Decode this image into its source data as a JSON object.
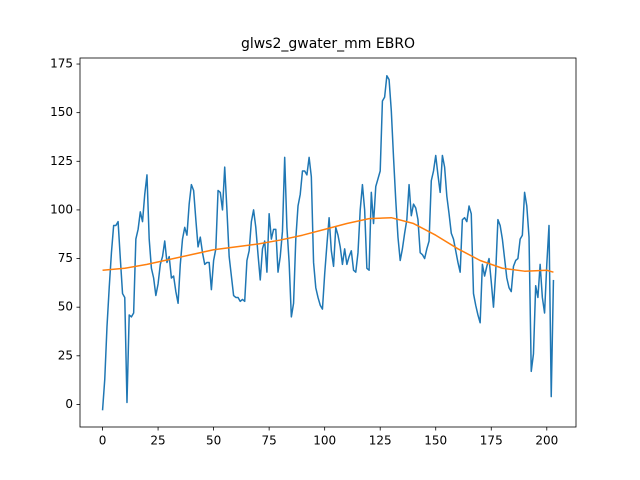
{
  "chart_data": {
    "type": "line",
    "title": "glws2_gwater_mm EBRO",
    "xlim": [
      -10.15,
      213.15
    ],
    "ylim": [
      -11.6,
      178.1
    ],
    "xticks": [
      0,
      25,
      50,
      75,
      100,
      125,
      150,
      175,
      200
    ],
    "yticks": [
      0,
      25,
      50,
      75,
      100,
      125,
      150,
      175
    ],
    "series": [
      {
        "color": "#1f77b4",
        "x": [
          0,
          1,
          2,
          3,
          4,
          5,
          6,
          7,
          8,
          9,
          10,
          11,
          12,
          13,
          14,
          15,
          16,
          17,
          18,
          19,
          20,
          21,
          22,
          23,
          24,
          25,
          26,
          27,
          28,
          29,
          30,
          31,
          32,
          33,
          34,
          35,
          36,
          37,
          38,
          39,
          40,
          41,
          42,
          43,
          44,
          45,
          46,
          47,
          48,
          49,
          50,
          51,
          52,
          53,
          54,
          55,
          56,
          57,
          58,
          59,
          60,
          61,
          62,
          63,
          64,
          65,
          66,
          67,
          68,
          69,
          70,
          71,
          72,
          73,
          74,
          75,
          76,
          77,
          78,
          79,
          80,
          81,
          82,
          83,
          84,
          85,
          86,
          87,
          88,
          89,
          90,
          91,
          92,
          93,
          94,
          95,
          96,
          97,
          98,
          99,
          100,
          101,
          102,
          103,
          104,
          105,
          106,
          107,
          108,
          109,
          110,
          111,
          112,
          113,
          114,
          115,
          116,
          117,
          118,
          119,
          120,
          121,
          122,
          123,
          124,
          125,
          126,
          127,
          128,
          129,
          130,
          131,
          132,
          133,
          134,
          135,
          136,
          137,
          138,
          139,
          140,
          141,
          142,
          143,
          144,
          145,
          146,
          147,
          148,
          149,
          150,
          151,
          152,
          153,
          154,
          155,
          156,
          157,
          158,
          159,
          160,
          161,
          162,
          163,
          164,
          165,
          166,
          167,
          168,
          169,
          170,
          171,
          172,
          173,
          174,
          175,
          176,
          177,
          178,
          179,
          180,
          181,
          182,
          183,
          184,
          185,
          186,
          187,
          188,
          189,
          190,
          191,
          192,
          193,
          194,
          195,
          196,
          197,
          198,
          199,
          200,
          201,
          202,
          203
        ],
        "values": [
          -3,
          13,
          40,
          60,
          78,
          92,
          92,
          94,
          75,
          57,
          55,
          1,
          46,
          45,
          47,
          85,
          90,
          99,
          94,
          108,
          118,
          85,
          70,
          65,
          56,
          62,
          72,
          76,
          84,
          73,
          76,
          65,
          66,
          58,
          52,
          72,
          85,
          91,
          87,
          103,
          113,
          110,
          95,
          81,
          86,
          78,
          72,
          73,
          73,
          59,
          74,
          80,
          110,
          109,
          100,
          122,
          100,
          76,
          66,
          56,
          55,
          55,
          53,
          54,
          53,
          74,
          79,
          94,
          100,
          91,
          77,
          64,
          80,
          84,
          68,
          98,
          85,
          90,
          90,
          68,
          76,
          89,
          127,
          91,
          73,
          45,
          52,
          85,
          102,
          108,
          120,
          120,
          118,
          127,
          117,
          73,
          60,
          55,
          51,
          49,
          67,
          82,
          96,
          79,
          71,
          91,
          87,
          81,
          72,
          80,
          72,
          76,
          79,
          69,
          68,
          78,
          100,
          113,
          100,
          70,
          69,
          109,
          93,
          112,
          116,
          120,
          156,
          158,
          169,
          167,
          151,
          127,
          105,
          86,
          74,
          80,
          88,
          95,
          113,
          97,
          103,
          101,
          95,
          78,
          77,
          75,
          80,
          84,
          115,
          120,
          128,
          118,
          109,
          128,
          122,
          107,
          98,
          88,
          85,
          79,
          73,
          68,
          95,
          96,
          94,
          102,
          98,
          57,
          51,
          46,
          42,
          72,
          66,
          71,
          75,
          63,
          50,
          68,
          95,
          92,
          85,
          75,
          65,
          60,
          58,
          71,
          74,
          75,
          85,
          87,
          109,
          102,
          86,
          17,
          26,
          61,
          55,
          72,
          55,
          47,
          72,
          92,
          4,
          64
        ]
      },
      {
        "color": "#ff7f0e",
        "x": [
          0,
          10,
          20,
          30,
          40,
          50,
          60,
          70,
          80,
          90,
          100,
          110,
          120,
          130,
          140,
          150,
          160,
          170,
          180,
          190,
          200,
          203
        ],
        "values": [
          69,
          70,
          72,
          74.5,
          77,
          79.5,
          81,
          82.5,
          84.5,
          87,
          90,
          93,
          95.5,
          96,
          93,
          87,
          80,
          74,
          70,
          68.5,
          69,
          68
        ]
      }
    ]
  }
}
